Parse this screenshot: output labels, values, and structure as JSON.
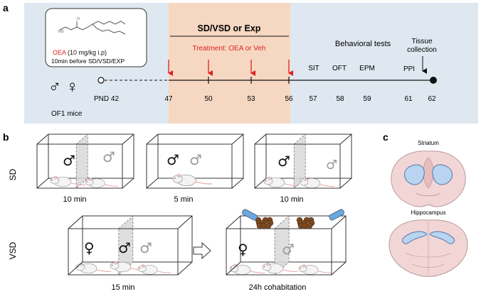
{
  "panel_a": {
    "label": "a",
    "compound_name": "OEA",
    "compound_dose": " (10 mg/kg i.p)",
    "compound_timing": "10min before SD/VSD/EXP",
    "sex_symbols": "♂ ♀",
    "mice_label": "OF1 mice",
    "timeline_start": "PND 42",
    "stress_title": "SD/VSD or Exp",
    "treatment": "Treatment: OEA or Veh",
    "behavioral_title": "Behavioral tests",
    "tissue_title_1": "Tissue",
    "tissue_title_2": "collection",
    "ticks": [
      "47",
      "50",
      "53",
      "56",
      "57",
      "58",
      "59",
      "61",
      "62"
    ],
    "tests": [
      "SIT",
      "OFT",
      "EPM",
      "PPI"
    ],
    "colors": {
      "bg": "#dfe8f1",
      "stress_bg": "#f6d8c2",
      "treatment": "#e02020"
    }
  },
  "panel_b": {
    "label": "b",
    "row1_label": "SD",
    "row2_label": "VSD",
    "row1_times": [
      "10 min",
      "5 min",
      "10 min"
    ],
    "row2_times": [
      "15 min",
      "24h cohabitation"
    ],
    "male": "♂",
    "female": "♀",
    "arrow_icon": "hollow-right-arrow-icon"
  },
  "panel_c": {
    "label": "c",
    "region1": "Striatum",
    "region2": "Hippocampus",
    "colors": {
      "brain": "#f2d6d6",
      "region": "#b8d4f0"
    }
  }
}
